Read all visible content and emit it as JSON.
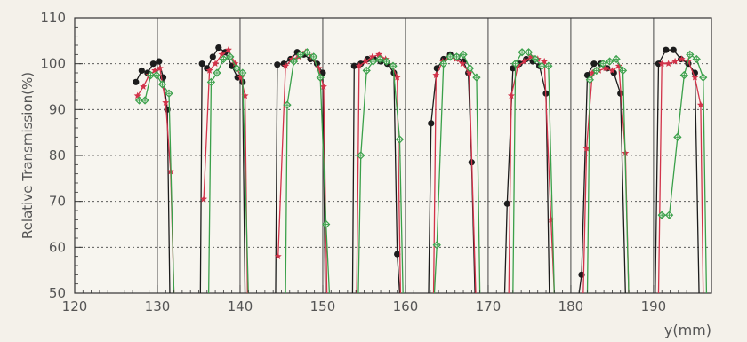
{
  "chart_data": {
    "type": "scatter",
    "title": "",
    "xlabel": "y(mm)",
    "ylabel": "Relative Transmission(%)",
    "xlim": [
      120,
      197
    ],
    "ylim": [
      50,
      110
    ],
    "x_ticks": [
      120,
      130,
      140,
      150,
      160,
      170,
      180,
      190
    ],
    "y_ticks": [
      50,
      60,
      70,
      80,
      90,
      100,
      110
    ],
    "grid": true,
    "legend": "none",
    "series": [
      {
        "marker": "filled-circle",
        "color": "#1c1c1c",
        "segments": [
          [
            [
              127.4,
              96
            ],
            [
              128.1,
              98.5
            ],
            [
              128.8,
              98
            ],
            [
              129.5,
              100
            ],
            [
              130.2,
              100.5
            ],
            [
              130.7,
              97
            ],
            [
              131.2,
              90
            ],
            [
              131.5,
              50
            ]
          ],
          [
            [
              135.2,
              50
            ],
            [
              135.4,
              100
            ],
            [
              136.0,
              99
            ],
            [
              136.7,
              101.5
            ],
            [
              137.4,
              103.5
            ],
            [
              138.2,
              102.5
            ],
            [
              139.0,
              99.5
            ],
            [
              139.7,
              97
            ],
            [
              140.3,
              96
            ],
            [
              140.6,
              50
            ]
          ],
          [
            [
              144.3,
              50
            ],
            [
              144.5,
              99.8
            ],
            [
              145.3,
              100
            ],
            [
              146.1,
              101
            ],
            [
              146.9,
              102.5
            ],
            [
              147.7,
              102
            ],
            [
              148.5,
              101
            ],
            [
              149.3,
              100
            ],
            [
              150.0,
              98
            ],
            [
              150.3,
              50
            ]
          ],
          [
            [
              153.6,
              50
            ],
            [
              153.8,
              99.5
            ],
            [
              154.6,
              100
            ],
            [
              155.4,
              101
            ],
            [
              156.2,
              101
            ],
            [
              157.0,
              100.5
            ],
            [
              157.8,
              100
            ],
            [
              158.6,
              98
            ],
            [
              159.0,
              58.5
            ],
            [
              159.3,
              50
            ]
          ],
          [
            [
              162.8,
              50
            ],
            [
              163.1,
              87
            ],
            [
              163.8,
              99
            ],
            [
              164.6,
              101
            ],
            [
              165.4,
              102
            ],
            [
              166.2,
              101.5
            ],
            [
              167.0,
              100.5
            ],
            [
              167.6,
              98
            ],
            [
              168.0,
              78.5
            ],
            [
              168.4,
              50
            ]
          ],
          [
            [
              172.0,
              50
            ],
            [
              172.3,
              69.5
            ],
            [
              173.0,
              99
            ],
            [
              173.8,
              100
            ],
            [
              174.6,
              101
            ],
            [
              175.4,
              100.5
            ],
            [
              176.2,
              99.5
            ],
            [
              177.0,
              93.5
            ],
            [
              177.4,
              50
            ]
          ],
          [
            [
              181.0,
              50
            ],
            [
              181.3,
              54
            ],
            [
              182.0,
              97.5
            ],
            [
              182.8,
              100
            ],
            [
              183.6,
              100
            ],
            [
              184.4,
              99
            ],
            [
              185.2,
              98
            ],
            [
              186.0,
              93.5
            ],
            [
              186.6,
              50
            ]
          ],
          [
            [
              190.2,
              50
            ],
            [
              190.6,
              100
            ],
            [
              191.5,
              103
            ],
            [
              192.4,
              103
            ],
            [
              193.3,
              101
            ],
            [
              194.2,
              100
            ],
            [
              195.0,
              98
            ],
            [
              195.5,
              50
            ]
          ]
        ]
      },
      {
        "marker": "star",
        "color": "#d2334a",
        "segments": [
          [
            [
              127.6,
              93
            ],
            [
              128.3,
              95
            ],
            [
              129.0,
              97.5
            ],
            [
              129.7,
              98.5
            ],
            [
              130.3,
              99
            ],
            [
              131.0,
              91.5
            ],
            [
              131.6,
              76.5
            ],
            [
              132.0,
              50
            ]
          ],
          [
            [
              135.6,
              70.5
            ],
            [
              136.3,
              98.5
            ],
            [
              137.0,
              100
            ],
            [
              137.8,
              102
            ],
            [
              138.6,
              103
            ],
            [
              139.4,
              100
            ],
            [
              140.1,
              97
            ],
            [
              140.6,
              93
            ],
            [
              140.9,
              50
            ]
          ],
          [
            [
              144.6,
              58
            ],
            [
              145.5,
              99.5
            ],
            [
              146.3,
              101
            ],
            [
              147.1,
              101.5
            ],
            [
              147.9,
              102.5
            ],
            [
              148.7,
              101.5
            ],
            [
              149.5,
              99
            ],
            [
              150.1,
              95
            ],
            [
              150.5,
              50
            ]
          ],
          [
            [
              154.1,
              50
            ],
            [
              154.4,
              99.5
            ],
            [
              155.2,
              100.5
            ],
            [
              156.0,
              101.5
            ],
            [
              156.8,
              102
            ],
            [
              157.6,
              101
            ],
            [
              158.4,
              99.5
            ],
            [
              159.0,
              97
            ],
            [
              159.4,
              50
            ]
          ],
          [
            [
              163.4,
              50
            ],
            [
              163.7,
              97.5
            ],
            [
              164.5,
              100.5
            ],
            [
              165.3,
              101.5
            ],
            [
              166.1,
              101
            ],
            [
              166.9,
              100
            ],
            [
              167.7,
              98
            ],
            [
              168.5,
              50
            ]
          ],
          [
            [
              172.5,
              50
            ],
            [
              172.8,
              93
            ],
            [
              173.6,
              99.5
            ],
            [
              174.4,
              100.5
            ],
            [
              175.2,
              101.5
            ],
            [
              176.0,
              101
            ],
            [
              176.8,
              100.5
            ],
            [
              177.6,
              66
            ],
            [
              178.0,
              50
            ]
          ],
          [
            [
              181.5,
              50
            ],
            [
              181.9,
              81.5
            ],
            [
              182.6,
              98
            ],
            [
              183.4,
              98.5
            ],
            [
              184.2,
              99
            ],
            [
              185.0,
              98.5
            ],
            [
              185.8,
              99.5
            ],
            [
              186.6,
              80.5
            ],
            [
              187.0,
              50
            ]
          ],
          [
            [
              190.6,
              50
            ],
            [
              191.0,
              100
            ],
            [
              191.8,
              100
            ],
            [
              192.6,
              100.5
            ],
            [
              193.4,
              101
            ],
            [
              194.2,
              100.5
            ],
            [
              195.0,
              97
            ],
            [
              195.7,
              91
            ],
            [
              196.0,
              50
            ]
          ]
        ]
      },
      {
        "marker": "open-diamond",
        "color": "#3aa04a",
        "segments": [
          [
            [
              127.8,
              92
            ],
            [
              128.5,
              92
            ],
            [
              129.2,
              97.5
            ],
            [
              129.9,
              97.5
            ],
            [
              130.6,
              95.5
            ],
            [
              131.4,
              93.5
            ],
            [
              132.0,
              50
            ]
          ],
          [
            [
              136.2,
              50
            ],
            [
              136.5,
              96
            ],
            [
              137.2,
              98
            ],
            [
              138.0,
              101
            ],
            [
              138.8,
              101.5
            ],
            [
              139.6,
              99
            ],
            [
              140.3,
              98
            ],
            [
              141.0,
              50
            ]
          ],
          [
            [
              145.5,
              50
            ],
            [
              145.7,
              91
            ],
            [
              146.5,
              100.5
            ],
            [
              147.3,
              102
            ],
            [
              148.1,
              102.5
            ],
            [
              148.9,
              101.5
            ],
            [
              149.7,
              97
            ],
            [
              150.4,
              65
            ],
            [
              150.8,
              50
            ]
          ],
          [
            [
              154.3,
              50
            ],
            [
              154.6,
              80
            ],
            [
              155.3,
              98.5
            ],
            [
              156.1,
              100.5
            ],
            [
              156.9,
              101
            ],
            [
              157.7,
              100.5
            ],
            [
              158.5,
              99.5
            ],
            [
              159.3,
              83.5
            ],
            [
              159.7,
              50
            ]
          ],
          [
            [
              163.5,
              50
            ],
            [
              163.8,
              60.5
            ],
            [
              164.6,
              100
            ],
            [
              165.4,
              101.5
            ],
            [
              166.2,
              101.5
            ],
            [
              167.0,
              102
            ],
            [
              167.8,
              99
            ],
            [
              168.6,
              97
            ],
            [
              169.0,
              50
            ]
          ],
          [
            [
              173.0,
              50
            ],
            [
              173.3,
              100
            ],
            [
              174.1,
              102.5
            ],
            [
              174.9,
              102.5
            ],
            [
              175.7,
              101
            ],
            [
              176.5,
              99.5
            ],
            [
              177.3,
              99.5
            ],
            [
              178.0,
              50
            ]
          ],
          [
            [
              182.0,
              50
            ],
            [
              182.3,
              96.5
            ],
            [
              183.1,
              98.5
            ],
            [
              183.9,
              100
            ],
            [
              184.7,
              100.5
            ],
            [
              185.5,
              101
            ],
            [
              186.3,
              98.5
            ],
            [
              187.0,
              50
            ]
          ],
          [
            [
              191.0,
              67
            ],
            [
              191.9,
              67
            ],
            [
              192.9,
              84
            ],
            [
              193.7,
              97.5
            ],
            [
              194.4,
              102
            ],
            [
              195.2,
              101
            ],
            [
              196.0,
              97
            ],
            [
              196.4,
              50
            ]
          ]
        ]
      }
    ]
  }
}
